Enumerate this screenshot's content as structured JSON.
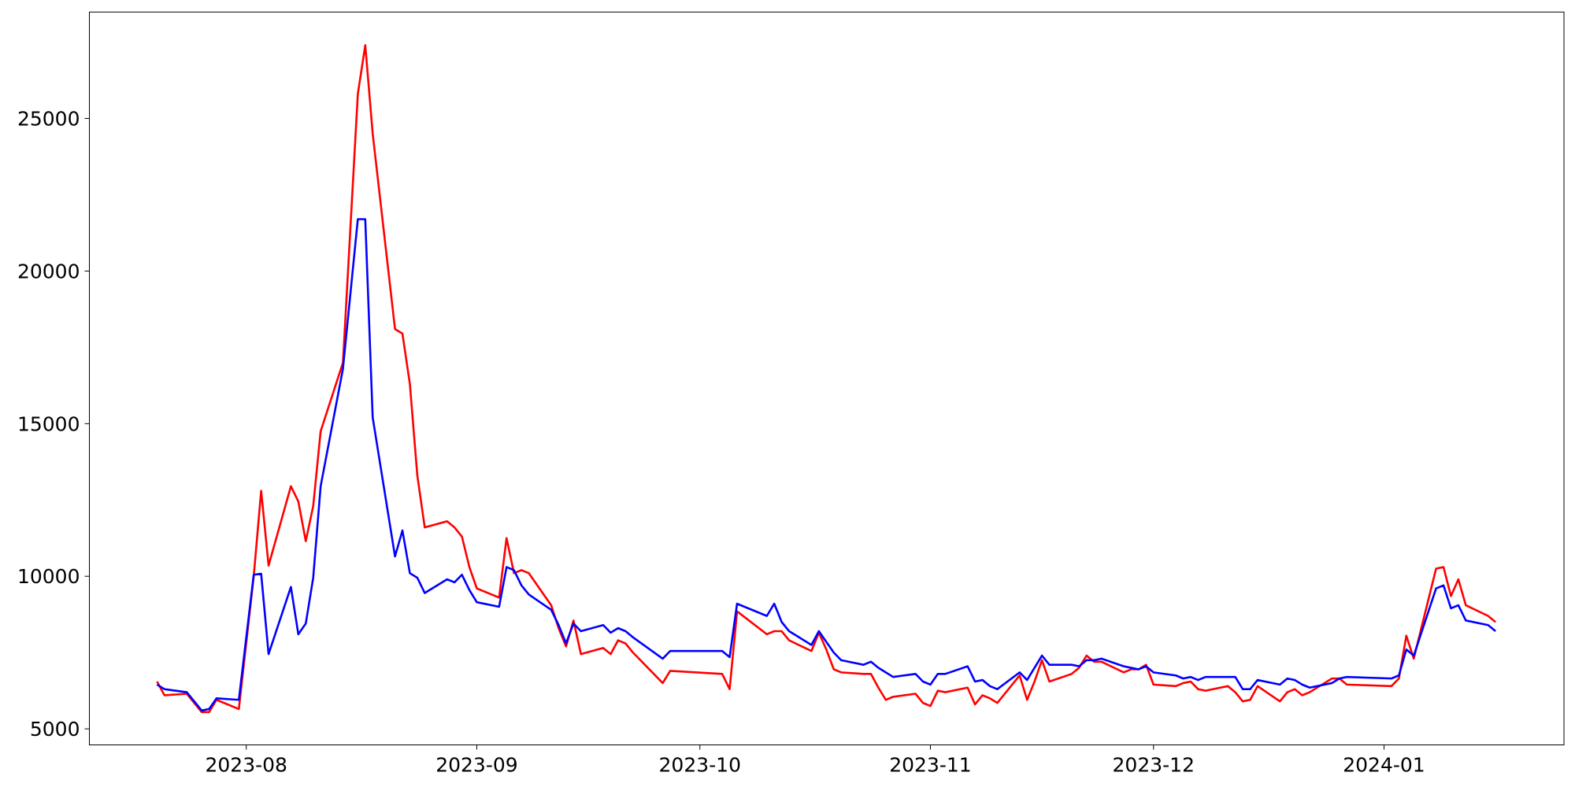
{
  "chart_data": {
    "type": "line",
    "x": [
      19558,
      19559,
      19562,
      19564,
      19565,
      19566,
      19569,
      19571,
      19572,
      19573,
      19576,
      19577,
      19578,
      19579,
      19580,
      19583,
      19585,
      19586,
      19587,
      19590,
      19591,
      19592,
      19593,
      19594,
      19597,
      19598,
      19599,
      19600,
      19601,
      19604,
      19605,
      19606,
      19607,
      19608,
      19611,
      19612,
      19613,
      19614,
      19615,
      19618,
      19619,
      19620,
      19621,
      19622,
      19626,
      19627,
      19634,
      19635,
      19636,
      19640,
      19641,
      19642,
      19643,
      19646,
      19647,
      19648,
      19649,
      19650,
      19653,
      19654,
      19655,
      19656,
      19657,
      19660,
      19661,
      19662,
      19663,
      19664,
      19667,
      19668,
      19669,
      19670,
      19671,
      19674,
      19675,
      19676,
      19677,
      19678,
      19681,
      19682,
      19683,
      19684,
      19685,
      19688,
      19689,
      19690,
      19691,
      19692,
      19695,
      19696,
      19697,
      19698,
      19699,
      19702,
      19703,
      19704,
      19705,
      19706,
      19709,
      19710,
      19711,
      19712,
      19713,
      19716,
      19717,
      19718,
      19724,
      19725,
      19726,
      19727,
      19730,
      19731,
      19732,
      19733,
      19734,
      19737,
      19738
    ],
    "series": [
      {
        "color": "red",
        "values": [
          6550,
          6100,
          6150,
          5550,
          5550,
          5950,
          5650,
          10000,
          12800,
          10350,
          12950,
          12450,
          11150,
          12300,
          14750,
          17000,
          25800,
          27400,
          24500,
          18100,
          17950,
          16300,
          13300,
          11600,
          11800,
          11600,
          11300,
          10300,
          9600,
          9300,
          11250,
          10100,
          10200,
          10100,
          9050,
          8300,
          7700,
          8550,
          7450,
          7650,
          7450,
          7900,
          7800,
          7500,
          6500,
          6900,
          6800,
          6300,
          8850,
          8100,
          8200,
          8200,
          7900,
          7550,
          8150,
          7600,
          6950,
          6850,
          6800,
          6800,
          6350,
          5950,
          6050,
          6150,
          5850,
          5750,
          6250,
          6200,
          6350,
          5800,
          6100,
          6000,
          5850,
          6750,
          5950,
          6550,
          7250,
          6550,
          6800,
          7000,
          7400,
          7200,
          7200,
          6850,
          6950,
          6950,
          7100,
          6450,
          6400,
          6500,
          6550,
          6300,
          6250,
          6400,
          6200,
          5900,
          5950,
          6400,
          5900,
          6200,
          6300,
          6100,
          6200,
          6650,
          6650,
          6450,
          6400,
          6650,
          8050,
          7300,
          10250,
          10300,
          9350,
          9900,
          9050,
          8700,
          8500
        ]
      },
      {
        "color": "blue",
        "values": [
          6450,
          6300,
          6200,
          5600,
          5650,
          6000,
          5950,
          10050,
          10080,
          7450,
          9650,
          8100,
          8450,
          9950,
          12950,
          16800,
          21700,
          21700,
          15200,
          10650,
          11500,
          10100,
          9950,
          9450,
          9900,
          9800,
          10050,
          9550,
          9150,
          9000,
          10300,
          10200,
          9700,
          9400,
          8900,
          8400,
          7800,
          8450,
          8200,
          8400,
          8150,
          8300,
          8200,
          8000,
          7300,
          7550,
          7550,
          7350,
          9100,
          8700,
          9100,
          8500,
          8200,
          7750,
          8200,
          7850,
          7500,
          7250,
          7100,
          7200,
          7000,
          6850,
          6700,
          6800,
          6550,
          6450,
          6800,
          6800,
          7050,
          6550,
          6600,
          6400,
          6300,
          6850,
          6600,
          7000,
          7400,
          7100,
          7100,
          7050,
          7250,
          7250,
          7300,
          7050,
          7000,
          6950,
          7050,
          6850,
          6750,
          6650,
          6700,
          6600,
          6700,
          6700,
          6700,
          6300,
          6300,
          6600,
          6450,
          6650,
          6600,
          6450,
          6350,
          6500,
          6650,
          6700,
          6650,
          6750,
          7600,
          7400,
          9600,
          9700,
          8950,
          9050,
          8550,
          8400,
          8200
        ]
      }
    ],
    "xlim": [
      19548.9,
      19747.2
    ],
    "xticks": [
      {
        "value": 19570,
        "label": "2023-08"
      },
      {
        "value": 19601,
        "label": "2023-09"
      },
      {
        "value": 19631,
        "label": "2023-10"
      },
      {
        "value": 19662,
        "label": "2023-11"
      },
      {
        "value": 19692,
        "label": "2023-12"
      },
      {
        "value": 19723,
        "label": "2024-01"
      }
    ],
    "ylim": [
      4474,
      28487
    ],
    "yticks": [
      5000,
      10000,
      15000,
      20000,
      25000
    ]
  }
}
